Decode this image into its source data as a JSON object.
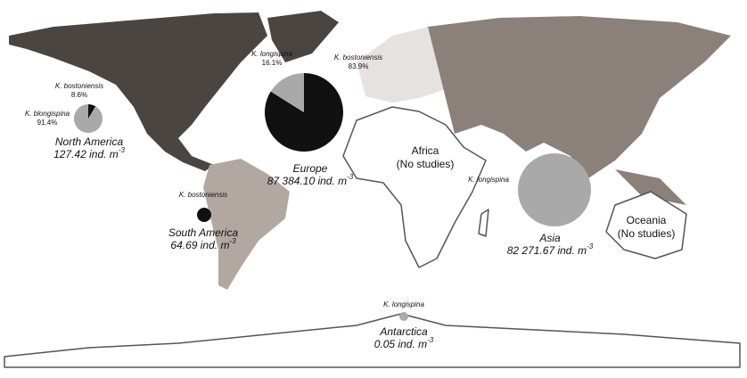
{
  "regions": [
    {
      "name": "North America",
      "density": "127.42 ind. m",
      "exponent": "-3",
      "pie": [
        {
          "label": "K. bostoniensis",
          "value": 8.6,
          "value_label": "8.6%",
          "color": "#111111"
        },
        {
          "label": "K. blongispina",
          "value": 91.4,
          "value_label": "91.4%",
          "color": "#a9a9a9"
        }
      ]
    },
    {
      "name": "Europe",
      "density": "87 384.10 ind. m",
      "exponent": "-3",
      "pie": [
        {
          "label": "K. bostoniensis",
          "value": 83.9,
          "value_label": "83.9%",
          "color": "#111111"
        },
        {
          "label": "K. longispina",
          "value": 16.1,
          "value_label": "16.1%",
          "color": "#a9a9a9"
        }
      ]
    },
    {
      "name": "South America",
      "density": "64.69 ind. m",
      "exponent": "-3",
      "pie": [
        {
          "label": "K. bostoniensis",
          "value": 100,
          "color": "#111111"
        }
      ]
    },
    {
      "name": "Asia",
      "density": "82 271.67 ind. m",
      "exponent": "-3",
      "pie": [
        {
          "label": "K. longispina",
          "value": 100,
          "color": "#a9a9a9"
        }
      ]
    },
    {
      "name": "Antarctica",
      "density": "0.05 ind. m",
      "exponent": "-3",
      "pie": [
        {
          "label": "K. longispina",
          "value": 100,
          "color": "#a9a9a9"
        }
      ]
    }
  ],
  "no_study_regions": [
    {
      "name": "Africa",
      "note": "(No studies)"
    },
    {
      "name": "Oceania",
      "note": "(No studies)"
    }
  ]
}
